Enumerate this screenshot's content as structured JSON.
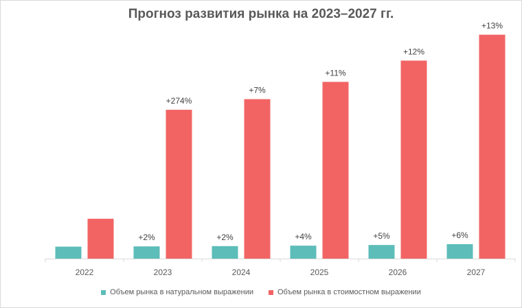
{
  "chart_data": {
    "type": "bar",
    "title": "Прогноз развития рынка на 2023–2027 гг.",
    "categories": [
      "2022",
      "2023",
      "2024",
      "2025",
      "2026",
      "2027"
    ],
    "series": [
      {
        "name": "Объем рынка в натуральном выражении",
        "color": "#5cbdb9",
        "values": [
          18,
          18.4,
          18.8,
          19.5,
          20.5,
          21.7
        ],
        "labels": [
          "",
          "+2%",
          "+2%",
          "+4%",
          "+5%",
          "+6%"
        ]
      },
      {
        "name": "Объем рынка в стоимостном выражении",
        "color": "#f26464",
        "values": [
          60,
          224,
          240,
          266,
          298,
          337
        ],
        "labels": [
          "",
          "+274%",
          "+7%",
          "+11%",
          "+12%",
          "+13%"
        ]
      }
    ],
    "ylim": [
      0,
      350
    ],
    "grid": false,
    "legend_position": "bottom",
    "xlabel": "",
    "ylabel": ""
  }
}
